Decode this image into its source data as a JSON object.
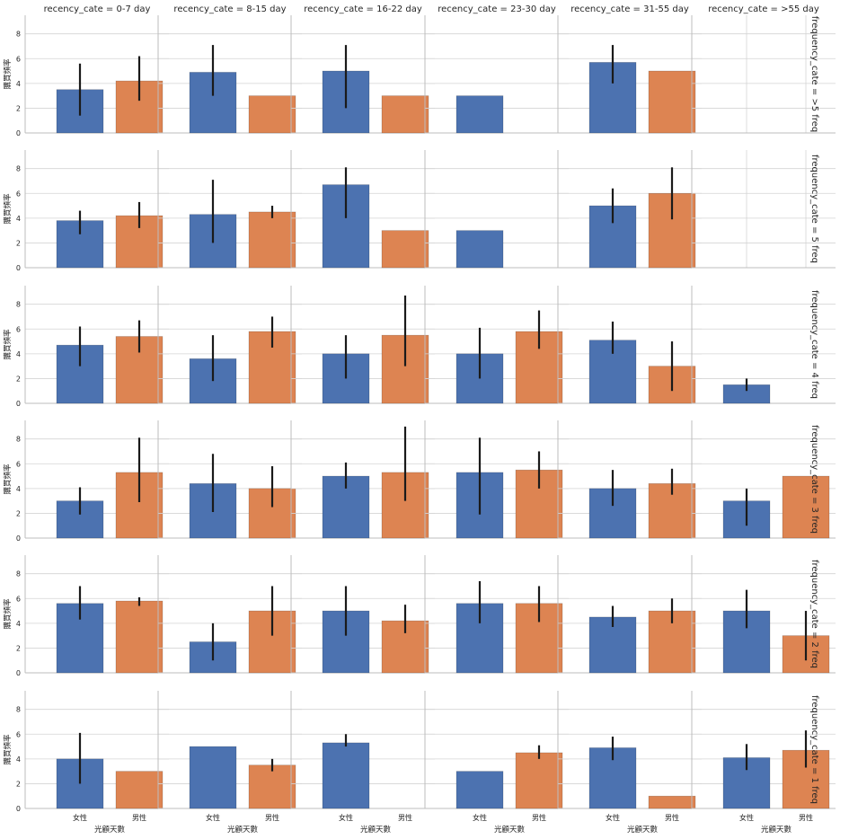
{
  "chart_data": {
    "type": "bar",
    "layout": "facet-grid",
    "col_var_titles": [
      "recency_cate = 0-7 day",
      "recency_cate = 8-15 day",
      "recency_cate = 16-22 day",
      "recency_cate = 23-30 day",
      "recency_cate = 31-55 day",
      "recency_cate = >55 day"
    ],
    "row_var_titles": [
      "frequency_cate = >5 freq",
      "frequency_cate = 5 freq",
      "frequency_cate = 4 freq",
      "frequency_cate = 3 freq",
      "frequency_cate = 2 freq",
      "frequency_cate = 1 freq"
    ],
    "categories": [
      "女性",
      "男性"
    ],
    "xlabel": "光顧天數",
    "ylabel": "購買頻率",
    "ylim": [
      0,
      9.5
    ],
    "yticks": [
      0,
      2,
      4,
      6,
      8
    ],
    "grid": "horizontal",
    "colors": {
      "女性": "#4c72b0",
      "男性": "#dd8452"
    },
    "series": [
      {
        "name": "女性",
        "values": [
          [
            3.5,
            4.9,
            5.0,
            3.0,
            5.7,
            null
          ],
          [
            3.8,
            4.3,
            6.7,
            3.0,
            5.0,
            null
          ],
          [
            4.7,
            3.6,
            4.0,
            4.0,
            5.1,
            1.5
          ],
          [
            3.0,
            4.4,
            5.0,
            5.3,
            4.0,
            3.0
          ],
          [
            5.6,
            2.5,
            5.0,
            5.6,
            4.5,
            5.0
          ],
          [
            4.0,
            5.0,
            5.3,
            3.0,
            4.9,
            4.1
          ]
        ]
      },
      {
        "name": "男性",
        "values": [
          [
            4.2,
            3.0,
            3.0,
            null,
            5.0,
            null
          ],
          [
            4.2,
            4.5,
            3.0,
            null,
            6.0,
            null
          ],
          [
            5.4,
            5.8,
            5.5,
            5.8,
            3.0,
            null
          ],
          [
            5.3,
            4.0,
            5.3,
            5.5,
            4.4,
            5.0
          ],
          [
            5.8,
            5.0,
            4.2,
            5.6,
            5.0,
            3.0
          ],
          [
            3.0,
            3.5,
            null,
            4.5,
            1.0,
            4.7
          ]
        ]
      }
    ],
    "error_bars": {
      "女性": [
        [
          [
            1.4,
            5.6
          ],
          [
            3.0,
            7.1
          ],
          [
            2.0,
            7.1
          ],
          null,
          [
            4.0,
            7.1
          ],
          null
        ],
        [
          [
            2.7,
            4.6
          ],
          [
            2.0,
            7.1
          ],
          [
            4.0,
            8.1
          ],
          null,
          [
            3.6,
            6.4
          ],
          null
        ],
        [
          [
            3.0,
            6.2
          ],
          [
            1.8,
            5.5
          ],
          [
            2.0,
            5.5
          ],
          [
            2.0,
            6.1
          ],
          [
            4.0,
            6.6
          ],
          [
            1.0,
            2.0
          ]
        ],
        [
          [
            1.9,
            4.1
          ],
          [
            2.1,
            6.8
          ],
          [
            4.0,
            6.1
          ],
          [
            1.9,
            8.1
          ],
          [
            2.6,
            5.5
          ],
          [
            1.0,
            4.0
          ]
        ],
        [
          [
            4.3,
            7.0
          ],
          [
            1.0,
            4.0
          ],
          [
            3.0,
            7.0
          ],
          [
            4.0,
            7.4
          ],
          [
            3.7,
            5.4
          ],
          [
            3.6,
            6.7
          ]
        ],
        [
          [
            2.0,
            6.1
          ],
          null,
          [
            5.0,
            6.0
          ],
          null,
          [
            3.9,
            5.8
          ],
          [
            3.1,
            5.2
          ]
        ]
      ],
      "男性": [
        [
          [
            2.6,
            6.2
          ],
          null,
          null,
          null,
          null,
          null
        ],
        [
          [
            3.2,
            5.3
          ],
          [
            4.0,
            5.0
          ],
          null,
          null,
          [
            3.9,
            8.1
          ],
          null
        ],
        [
          [
            4.1,
            6.7
          ],
          [
            4.5,
            7.0
          ],
          [
            3.0,
            8.7
          ],
          [
            4.4,
            7.5
          ],
          [
            1.0,
            5.0
          ],
          null
        ],
        [
          [
            2.9,
            8.1
          ],
          [
            2.5,
            5.8
          ],
          [
            3.0,
            9.0
          ],
          [
            4.0,
            7.0
          ],
          [
            3.5,
            5.6
          ],
          null
        ],
        [
          [
            5.4,
            6.1
          ],
          [
            3.0,
            7.0
          ],
          [
            3.2,
            5.5
          ],
          [
            4.1,
            7.0
          ],
          [
            4.0,
            6.0
          ],
          [
            1.0,
            5.0
          ]
        ],
        [
          null,
          [
            3.0,
            4.0
          ],
          null,
          [
            4.0,
            5.1
          ],
          null,
          [
            3.3,
            6.3
          ]
        ]
      ]
    }
  }
}
